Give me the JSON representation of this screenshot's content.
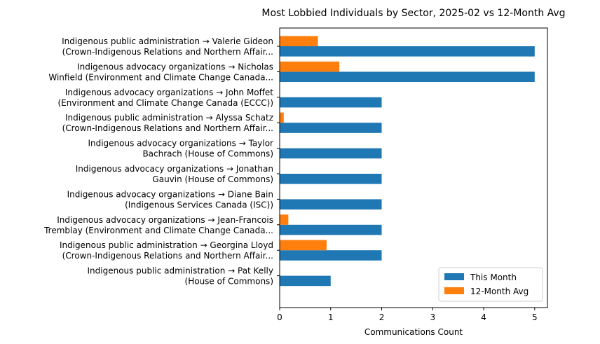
{
  "chart_data": {
    "type": "bar",
    "orientation": "horizontal",
    "title": "Most Lobbied Individuals by Sector, 2025-02 vs 12-Month Avg",
    "xlabel": "Communications Count",
    "ylabel": "",
    "xlim": [
      0,
      5.25
    ],
    "xticks": [
      0,
      1,
      2,
      3,
      4,
      5
    ],
    "grid": false,
    "legend_position": "bottom-right",
    "categories": [
      [
        "Indigenous public administration → Valerie Gideon",
        "(Crown-Indigenous Relations and Northern Affair..."
      ],
      [
        "Indigenous advocacy organizations → Nicholas",
        "Winfield (Environment and Climate Change Canada..."
      ],
      [
        "Indigenous advocacy organizations → John Moffet",
        "(Environment and Climate Change Canada (ECCC))"
      ],
      [
        "Indigenous public administration → Alyssa Schatz",
        "(Crown-Indigenous Relations and Northern Affair..."
      ],
      [
        "Indigenous advocacy organizations → Taylor",
        "Bachrach (House of Commons)"
      ],
      [
        "Indigenous advocacy organizations → Jonathan",
        "Gauvin (House of Commons)"
      ],
      [
        "Indigenous advocacy organizations → Diane  Bain",
        "(Indigenous Services Canada (ISC))"
      ],
      [
        "Indigenous advocacy organizations → Jean-Francois",
        "Tremblay (Environment and Climate Change Canada..."
      ],
      [
        "Indigenous public administration → Georgina Lloyd",
        "(Crown-Indigenous Relations and Northern Affair..."
      ],
      [
        "Indigenous public administration → Pat Kelly",
        "(House of Commons)"
      ]
    ],
    "series": [
      {
        "name": "This Month",
        "color": "#1f77b4",
        "values": [
          5,
          5,
          2,
          2,
          2,
          2,
          2,
          2,
          2,
          1
        ]
      },
      {
        "name": "12-Month Avg",
        "color": "#ff7f0e",
        "values": [
          0.75,
          1.17,
          0,
          0.08,
          0,
          0,
          0,
          0.17,
          0.92,
          0
        ]
      }
    ]
  }
}
